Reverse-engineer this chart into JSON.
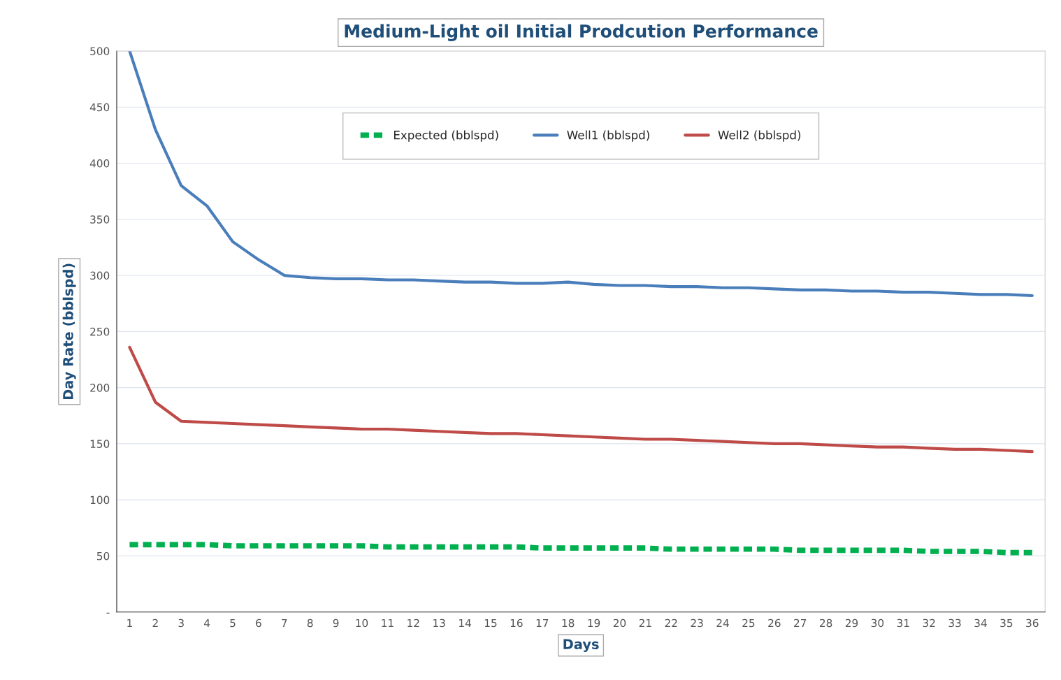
{
  "chart_data": {
    "type": "line",
    "title": "Medium-Light oil Initial Prodcution Performance",
    "xlabel": "Days",
    "ylabel": "Day Rate (bblspd)",
    "categories": [
      "1",
      "2",
      "3",
      "4",
      "5",
      "6",
      "7",
      "8",
      "9",
      "10",
      "11",
      "12",
      "13",
      "14",
      "15",
      "16",
      "17",
      "18",
      "19",
      "20",
      "21",
      "22",
      "23",
      "24",
      "25",
      "26",
      "27",
      "28",
      "29",
      "30",
      "31",
      "32",
      "33",
      "34",
      "35",
      "36"
    ],
    "series": [
      {
        "name": "Expected (bblspd)",
        "color": "#00b050",
        "line_style": "dashed",
        "values": [
          60,
          60,
          60,
          60,
          59,
          59,
          59,
          59,
          59,
          59,
          58,
          58,
          58,
          58,
          58,
          58,
          57,
          57,
          57,
          57,
          57,
          56,
          56,
          56,
          56,
          56,
          55,
          55,
          55,
          55,
          55,
          54,
          54,
          54,
          53,
          53
        ]
      },
      {
        "name": "Well1 (bblspd)",
        "color": "#4a7ebb",
        "line_style": "solid",
        "values": [
          500,
          430,
          380,
          362,
          330,
          314,
          300,
          298,
          297,
          297,
          296,
          296,
          295,
          294,
          294,
          293,
          293,
          294,
          292,
          291,
          291,
          290,
          290,
          289,
          289,
          288,
          287,
          287,
          286,
          286,
          285,
          285,
          284,
          283,
          283,
          282
        ]
      },
      {
        "name": "Well2 (bblspd)",
        "color": "#be4b48",
        "line_style": "solid",
        "values": [
          236,
          187,
          170,
          169,
          168,
          167,
          166,
          165,
          164,
          163,
          163,
          162,
          161,
          160,
          159,
          159,
          158,
          157,
          156,
          155,
          154,
          154,
          153,
          152,
          151,
          150,
          150,
          149,
          148,
          147,
          147,
          146,
          145,
          145,
          144,
          143
        ]
      }
    ],
    "ylim": [
      0,
      500
    ],
    "yticks": [
      {
        "value": 0,
        "label": "-"
      },
      50,
      100,
      150,
      200,
      250,
      300,
      350,
      400,
      450,
      500
    ],
    "grid": "y",
    "legend": "top",
    "marker": "none"
  }
}
